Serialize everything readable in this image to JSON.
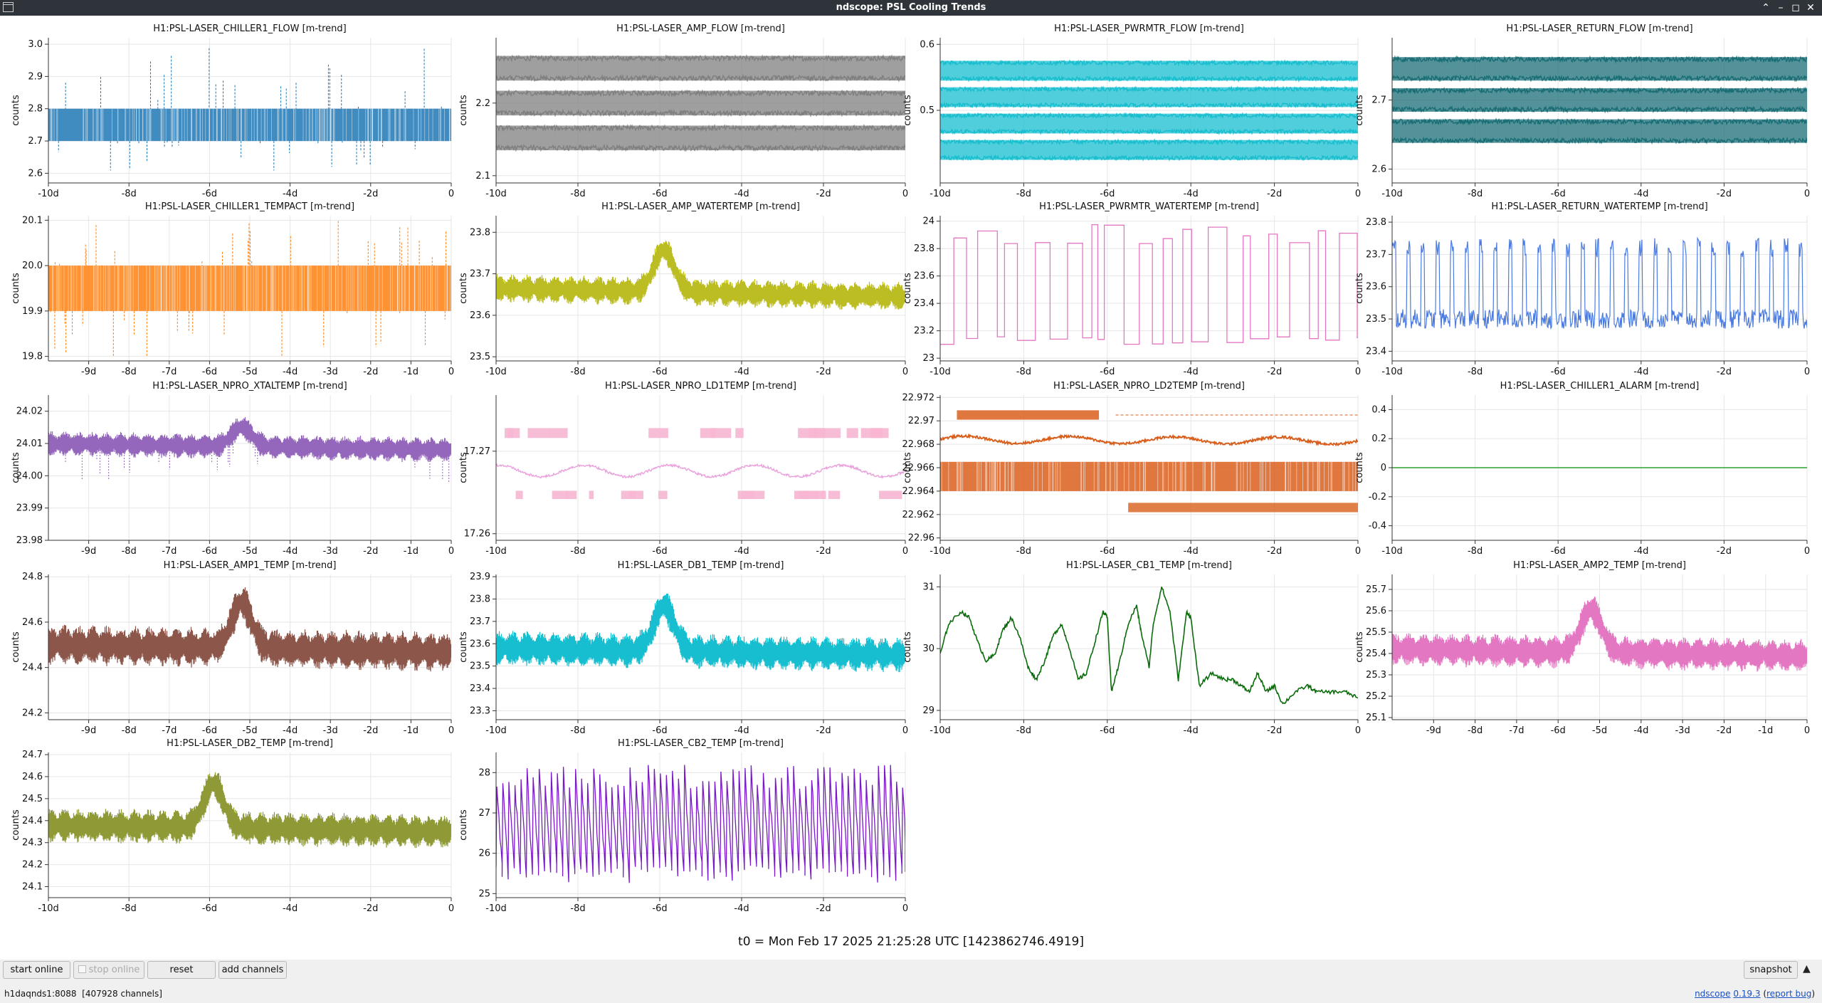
{
  "window": {
    "title": "ndscope: PSL Cooling Trends"
  },
  "t0_label": "t0 = Mon Feb 17 2025 21:25:28 UTC [1423862746.4919]",
  "toolbar": {
    "start_online": "start online",
    "stop_online": "stop online",
    "reset": "reset",
    "add_channels": "add channels",
    "snapshot": "snapshot"
  },
  "status": {
    "server": "h1daqnds1:8088",
    "channels": "[407928 channels]",
    "app": "ndscope",
    "version": "0.19.3",
    "open_paren": " (",
    "report_bug": "report bug",
    "close_paren": ")"
  },
  "chart_data": [
    {
      "type": "line",
      "title": "H1:PSL-LASER_CHILLER1_FLOW [m-trend]",
      "ylabel": "counts",
      "xlim": [
        -10,
        0
      ],
      "ylim": [
        2.57,
        3.02
      ],
      "x_ticks": [
        -10,
        -8,
        -6,
        -4,
        -2,
        0
      ],
      "x_tick_labels": [
        "-10d",
        "-8d",
        "-6d",
        "-4d",
        "-2d",
        "0"
      ],
      "y_ticks": [
        2.6,
        2.7,
        2.8,
        2.9,
        3.0
      ],
      "y_tick_labels": [
        "2.6",
        "2.7",
        "2.8",
        "2.9",
        "3.0"
      ],
      "color": "#1f77b4",
      "grid": true,
      "pattern": "band",
      "band": [
        2.7,
        2.8
      ],
      "mean": 2.76,
      "spike_up_max": 3.0,
      "spike_down_min": 2.6,
      "spikes_up": [
        2.9,
        3.0,
        2.9,
        3.0,
        2.9
      ],
      "spikes_down": [
        2.62,
        2.6,
        2.61,
        2.62
      ]
    },
    {
      "type": "line",
      "title": "H1:PSL-LASER_AMP_FLOW [m-trend]",
      "ylabel": "counts",
      "xlim": [
        -10,
        0
      ],
      "ylim": [
        2.09,
        2.29
      ],
      "x_ticks": [
        -10,
        -8,
        -6,
        -4,
        -2,
        0
      ],
      "x_tick_labels": [
        "-10d",
        "-8d",
        "-6d",
        "-4d",
        "-2d",
        "0"
      ],
      "y_ticks": [
        2.1,
        2.2
      ],
      "y_tick_labels": [
        "2.1",
        "2.2"
      ],
      "color": "#7f7f7f",
      "grid": true,
      "pattern": "bands",
      "levels": [
        2.248,
        2.2,
        2.152
      ],
      "band_width": 0.034
    },
    {
      "type": "line",
      "title": "H1:PSL-LASER_PWRMTR_FLOW [m-trend]",
      "ylabel": "counts",
      "xlim": [
        -10,
        0
      ],
      "ylim": [
        0.39,
        0.61
      ],
      "x_ticks": [
        -10,
        -8,
        -6,
        -4,
        -2,
        0
      ],
      "x_tick_labels": [
        "-10d",
        "-8d",
        "-6d",
        "-4d",
        "-2d",
        "0"
      ],
      "y_ticks": [
        0.5,
        0.6
      ],
      "y_tick_labels": [
        "0.5",
        "0.6"
      ],
      "color": "#17becf",
      "grid": true,
      "pattern": "bands",
      "levels": [
        0.56,
        0.52,
        0.48,
        0.44
      ],
      "band_width": 0.03
    },
    {
      "type": "line",
      "title": "H1:PSL-LASER_RETURN_FLOW [m-trend]",
      "ylabel": "counts",
      "xlim": [
        -10,
        0
      ],
      "ylim": [
        2.58,
        2.79
      ],
      "x_ticks": [
        -10,
        -8,
        -6,
        -4,
        -2,
        0
      ],
      "x_tick_labels": [
        "-10d",
        "-8d",
        "-6d",
        "-4d",
        "-2d",
        "0"
      ],
      "y_ticks": [
        2.6,
        2.7
      ],
      "y_tick_labels": [
        "2.6",
        "2.7"
      ],
      "color": "#1a6e76",
      "grid": true,
      "pattern": "bands",
      "levels": [
        2.745,
        2.7,
        2.655
      ],
      "band_width": 0.034
    },
    {
      "type": "line",
      "title": "H1:PSL-LASER_CHILLER1_TEMPACT [m-trend]",
      "ylabel": "counts",
      "xlim": [
        -10,
        0
      ],
      "ylim": [
        19.79,
        20.11
      ],
      "x_ticks": [
        -9,
        -8,
        -7,
        -6,
        -5,
        -4,
        -3,
        -2,
        -1,
        0
      ],
      "x_tick_labels": [
        "-9d",
        "-8d",
        "-7d",
        "-6d",
        "-5d",
        "-4d",
        "-3d",
        "-2d",
        "-1d",
        "0"
      ],
      "y_ticks": [
        19.8,
        19.9,
        20.0,
        20.1
      ],
      "y_tick_labels": [
        "19.8",
        "19.9",
        "20.0",
        "20.1"
      ],
      "color": "#ff7f0e",
      "grid": true,
      "pattern": "band",
      "band": [
        19.9,
        20.0
      ],
      "mean": 19.95,
      "spike_up_max": 20.1,
      "spike_down_min": 19.8,
      "spikes_up": [
        20.1,
        20.1,
        20.1,
        20.1,
        20.1,
        20.1
      ],
      "spikes_down": [
        19.8,
        19.8,
        19.8,
        19.8
      ]
    },
    {
      "type": "line",
      "title": "H1:PSL-LASER_AMP_WATERTEMP [m-trend]",
      "ylabel": "counts",
      "xlim": [
        -10,
        0
      ],
      "ylim": [
        23.49,
        23.84
      ],
      "x_ticks": [
        -10,
        -8,
        -6,
        -4,
        -2,
        0
      ],
      "x_tick_labels": [
        "-10d",
        "-8d",
        "-6d",
        "-4d",
        "-2d",
        "0"
      ],
      "y_ticks": [
        23.5,
        23.6,
        23.7,
        23.8
      ],
      "y_tick_labels": [
        "23.5",
        "23.6",
        "23.7",
        "23.8"
      ],
      "color": "#bcbd22",
      "grid": true,
      "pattern": "noisy",
      "base": 23.665,
      "noise": 0.035,
      "bump_x": -5.9,
      "bump_h": 0.1,
      "drift": -0.02
    },
    {
      "type": "line",
      "title": "H1:PSL-LASER_PWRMTR_WATERTEMP [m-trend]",
      "ylabel": "counts",
      "xlim": [
        -10,
        0
      ],
      "ylim": [
        22.98,
        24.04
      ],
      "x_ticks": [
        -10,
        -8,
        -6,
        -4,
        -2,
        0
      ],
      "x_tick_labels": [
        "-10d",
        "-8d",
        "-6d",
        "-4d",
        "-2d",
        "0"
      ],
      "y_ticks": [
        23,
        23.2,
        23.4,
        23.6,
        23.8,
        24
      ],
      "y_tick_labels": [
        "23",
        "23.2",
        "23.4",
        "23.6",
        "23.8",
        "24"
      ],
      "color": "#e377c2",
      "grid": true,
      "pattern": "square",
      "low": 23.13,
      "high": 23.9,
      "period": 0.45
    },
    {
      "type": "line",
      "title": "H1:PSL-LASER_RETURN_WATERTEMP [m-trend]",
      "ylabel": "counts",
      "xlim": [
        -10,
        0
      ],
      "ylim": [
        23.37,
        23.82
      ],
      "x_ticks": [
        -10,
        -8,
        -6,
        -4,
        -2,
        0
      ],
      "x_tick_labels": [
        "-10d",
        "-8d",
        "-6d",
        "-4d",
        "-2d",
        "0"
      ],
      "y_ticks": [
        23.4,
        23.5,
        23.6,
        23.7,
        23.8
      ],
      "y_tick_labels": [
        "23.4",
        "23.5",
        "23.6",
        "23.7",
        "23.8"
      ],
      "color": "#4c7be0",
      "grid": true,
      "pattern": "pulses",
      "low": 23.5,
      "high": 23.72,
      "period": 0.35
    },
    {
      "type": "line",
      "title": "H1:PSL-LASER_NPRO_XTALTEMP [m-trend]",
      "ylabel": "counts",
      "xlim": [
        -10,
        0
      ],
      "ylim": [
        23.98,
        24.025
      ],
      "x_ticks": [
        -9,
        -8,
        -7,
        -6,
        -5,
        -4,
        -3,
        -2,
        -1,
        0
      ],
      "x_tick_labels": [
        "-9d",
        "-8d",
        "-7d",
        "-6d",
        "-5d",
        "-4d",
        "-3d",
        "-2d",
        "-1d",
        "0"
      ],
      "y_ticks": [
        23.98,
        23.99,
        24.0,
        24.01,
        24.02
      ],
      "y_tick_labels": [
        "23.98",
        "23.99",
        "24.00",
        "24.01",
        "24.02"
      ],
      "color": "#9467bd",
      "grid": true,
      "pattern": "noisy",
      "base": 24.01,
      "noise": 0.004,
      "bump_x": -5.2,
      "bump_h": 0.006,
      "drift": -0.002,
      "dips": true
    },
    {
      "type": "line",
      "title": "H1:PSL-LASER_NPRO_LD1TEMP [m-trend]",
      "ylabel": "counts",
      "xlim": [
        -10,
        0
      ],
      "ylim": [
        17.2592,
        17.2768
      ],
      "x_ticks": [
        -10,
        -8,
        -6,
        -4,
        -2,
        0
      ],
      "x_tick_labels": [
        "-10d",
        "-8d",
        "-6d",
        "-4d",
        "-2d",
        "0"
      ],
      "y_ticks": [
        17.26,
        17.27
      ],
      "y_tick_labels": [
        "17.26",
        "17.27"
      ],
      "color": "#f7b6d2",
      "line_color": "#e9a0dc",
      "grid": true,
      "pattern": "ld",
      "mean": 17.2676,
      "upper": 17.2722,
      "lower": 17.2647
    },
    {
      "type": "line",
      "title": "H1:PSL-LASER_NPRO_LD2TEMP [m-trend]",
      "ylabel": "counts",
      "xlim": [
        -10,
        0
      ],
      "ylim": [
        22.9598,
        22.9722
      ],
      "x_ticks": [
        -10,
        -8,
        -6,
        -4,
        -2,
        0
      ],
      "x_tick_labels": [
        "-10d",
        "-8d",
        "-6d",
        "-4d",
        "-2d",
        "0"
      ],
      "y_ticks": [
        22.96,
        22.962,
        22.964,
        22.966,
        22.968,
        22.97,
        22.972
      ],
      "y_tick_labels": [
        "22.96",
        "22.962",
        "22.964",
        "22.966",
        "22.968",
        "22.97",
        "22.972"
      ],
      "color": "#d95f1c",
      "grid": true,
      "pattern": "ld2",
      "mean": 22.9684,
      "upper": 22.9705,
      "band": [
        22.964,
        22.9665
      ],
      "band2": [
        22.9622,
        22.963
      ]
    },
    {
      "type": "line",
      "title": "H1:PSL-LASER_CHILLER1_ALARM [m-trend]",
      "ylabel": "counts",
      "xlim": [
        -10,
        0
      ],
      "ylim": [
        -0.5,
        0.5
      ],
      "x_ticks": [
        -10,
        -8,
        -6,
        -4,
        -2,
        0
      ],
      "x_tick_labels": [
        "-10d",
        "-8d",
        "-6d",
        "-4d",
        "-2d",
        "0"
      ],
      "y_ticks": [
        -0.4,
        -0.2,
        0,
        0.2,
        0.4
      ],
      "y_tick_labels": [
        "-0.4",
        "-0.2",
        "0",
        "0.2",
        "0.4"
      ],
      "color": "#2ca02c",
      "grid": true,
      "pattern": "flat",
      "value": 0
    },
    {
      "type": "line",
      "title": "H1:PSL-LASER_AMP1_TEMP [m-trend]",
      "ylabel": "counts",
      "xlim": [
        -10,
        0
      ],
      "ylim": [
        24.17,
        24.81
      ],
      "x_ticks": [
        -9,
        -8,
        -7,
        -6,
        -5,
        -4,
        -3,
        -2,
        -1,
        0
      ],
      "x_tick_labels": [
        "-9d",
        "-8d",
        "-7d",
        "-6d",
        "-5d",
        "-4d",
        "-3d",
        "-2d",
        "-1d",
        "0"
      ],
      "y_ticks": [
        24.2,
        24.4,
        24.6,
        24.8
      ],
      "y_tick_labels": [
        "24.2",
        "24.4",
        "24.6",
        "24.8"
      ],
      "color": "#8c564b",
      "grid": true,
      "pattern": "noisy",
      "base": 24.5,
      "noise": 0.09,
      "bump_x": -5.2,
      "bump_h": 0.2,
      "drift": -0.03
    },
    {
      "type": "line",
      "title": "H1:PSL-LASER_DB1_TEMP [m-trend]",
      "ylabel": "counts",
      "xlim": [
        -10,
        0
      ],
      "ylim": [
        23.26,
        23.91
      ],
      "x_ticks": [
        -10,
        -8,
        -6,
        -4,
        -2,
        0
      ],
      "x_tick_labels": [
        "-10d",
        "-8d",
        "-6d",
        "-4d",
        "-2d",
        "0"
      ],
      "y_ticks": [
        23.3,
        23.4,
        23.5,
        23.6,
        23.7,
        23.8,
        23.9
      ],
      "y_tick_labels": [
        "23.3",
        "23.4",
        "23.5",
        "23.6",
        "23.7",
        "23.8",
        "23.9"
      ],
      "color": "#17becf",
      "grid": true,
      "pattern": "noisy",
      "base": 23.58,
      "noise": 0.08,
      "bump_x": -5.9,
      "bump_h": 0.2,
      "drift": -0.03
    },
    {
      "type": "line",
      "title": "H1:PSL-LASER_CB1_TEMP [m-trend]",
      "ylabel": "counts",
      "xlim": [
        -10,
        0
      ],
      "ylim": [
        28.85,
        31.2
      ],
      "x_ticks": [
        -10,
        -8,
        -6,
        -4,
        -2,
        0
      ],
      "x_tick_labels": [
        "-10d",
        "-8d",
        "-6d",
        "-4d",
        "-2d",
        "0"
      ],
      "y_ticks": [
        29,
        30,
        31
      ],
      "y_tick_labels": [
        "29",
        "30",
        "31"
      ],
      "color": "#0a6b0a",
      "grid": true,
      "pattern": "path",
      "x": [
        -10,
        -9.8,
        -9.5,
        -9.3,
        -9.1,
        -8.9,
        -8.7,
        -8.5,
        -8.3,
        -8.1,
        -7.9,
        -7.7,
        -7.5,
        -7.3,
        -7.1,
        -6.9,
        -6.7,
        -6.5,
        -6.3,
        -6.1,
        -6.0,
        -5.9,
        -5.7,
        -5.5,
        -5.3,
        -5.2,
        -5.0,
        -4.9,
        -4.7,
        -4.5,
        -4.3,
        -4.1,
        -4.0,
        -3.8,
        -3.5,
        -3.2,
        -3.0,
        -2.8,
        -2.6,
        -2.4,
        -2.2,
        -2.0,
        -1.8,
        -1.5,
        -1.2,
        -1.0,
        -0.6,
        -0.3,
        0
      ],
      "values": [
        29.9,
        30.4,
        30.6,
        30.5,
        30.1,
        29.8,
        29.9,
        30.3,
        30.5,
        30.2,
        29.7,
        29.5,
        29.8,
        30.2,
        30.4,
        30.0,
        29.5,
        29.6,
        30.1,
        30.6,
        30.5,
        29.3,
        29.8,
        30.4,
        30.7,
        30.3,
        29.7,
        30.4,
        31.0,
        30.6,
        29.5,
        30.6,
        30.5,
        29.4,
        29.6,
        29.5,
        29.5,
        29.4,
        29.3,
        29.6,
        29.3,
        29.4,
        29.1,
        29.3,
        29.4,
        29.3,
        29.3,
        29.3,
        29.2
      ]
    },
    {
      "type": "line",
      "title": "H1:PSL-LASER_AMP2_TEMP [m-trend]",
      "ylabel": "counts",
      "xlim": [
        -10,
        0
      ],
      "ylim": [
        25.09,
        25.77
      ],
      "x_ticks": [
        -9,
        -8,
        -7,
        -6,
        -5,
        -4,
        -3,
        -2,
        -1,
        0
      ],
      "x_tick_labels": [
        "-9d",
        "-8d",
        "-7d",
        "-6d",
        "-5d",
        "-4d",
        "-3d",
        "-2d",
        "-1d",
        "0"
      ],
      "y_ticks": [
        25.1,
        25.2,
        25.3,
        25.4,
        25.5,
        25.6,
        25.7
      ],
      "y_tick_labels": [
        "25.1",
        "25.2",
        "25.3",
        "25.4",
        "25.5",
        "25.6",
        "25.7"
      ],
      "color": "#e377c2",
      "grid": true,
      "pattern": "noisy",
      "base": 25.42,
      "noise": 0.08,
      "bump_x": -5.2,
      "bump_h": 0.2,
      "drift": -0.03
    },
    {
      "type": "line",
      "title": "H1:PSL-LASER_DB2_TEMP [m-trend]",
      "ylabel": "counts",
      "xlim": [
        -10,
        0
      ],
      "ylim": [
        24.05,
        24.71
      ],
      "x_ticks": [
        -10,
        -8,
        -6,
        -4,
        -2,
        0
      ],
      "x_tick_labels": [
        "-10d",
        "-8d",
        "-6d",
        "-4d",
        "-2d",
        "0"
      ],
      "y_ticks": [
        24.1,
        24.2,
        24.3,
        24.4,
        24.5,
        24.6,
        24.7
      ],
      "y_tick_labels": [
        "24.1",
        "24.2",
        "24.3",
        "24.4",
        "24.5",
        "24.6",
        "24.7"
      ],
      "color": "#8f9a36",
      "grid": true,
      "pattern": "noisy",
      "base": 24.38,
      "noise": 0.08,
      "bump_x": -5.9,
      "bump_h": 0.2,
      "drift": -0.03
    },
    {
      "type": "line",
      "title": "H1:PSL-LASER_CB2_TEMP [m-trend]",
      "ylabel": "counts",
      "xlim": [
        -10,
        0
      ],
      "ylim": [
        24.9,
        28.5
      ],
      "x_ticks": [
        -10,
        -8,
        -6,
        -4,
        -2,
        0
      ],
      "x_tick_labels": [
        "-10d",
        "-8d",
        "-6d",
        "-4d",
        "-2d",
        "0"
      ],
      "y_ticks": [
        25,
        26,
        27,
        28
      ],
      "y_tick_labels": [
        "25",
        "26",
        "27",
        "28"
      ],
      "color": "#7a18c8",
      "grid": true,
      "pattern": "saw",
      "low": 25.4,
      "high": 28.2,
      "period": 0.148
    }
  ]
}
